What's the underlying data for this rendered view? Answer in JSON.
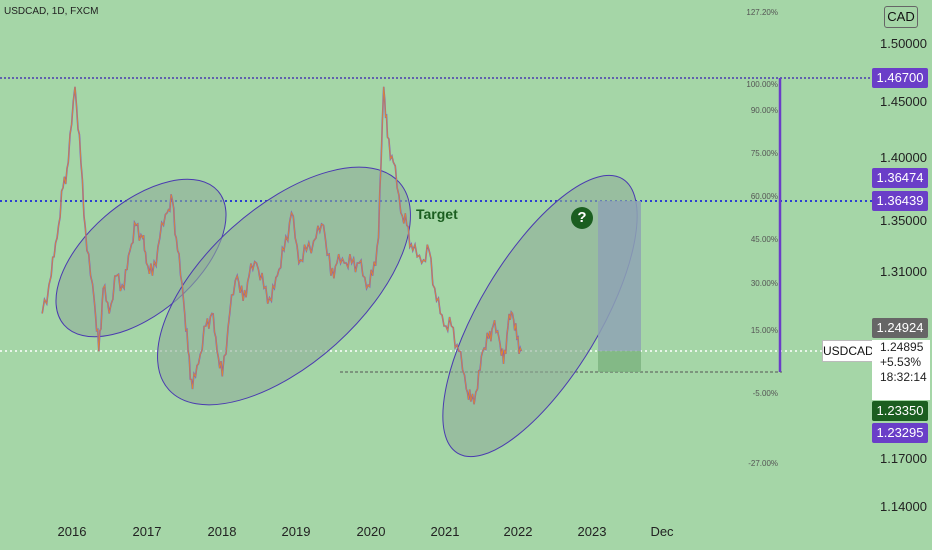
{
  "header": {
    "symbol_line": "USDCAD, 1D, FXCM"
  },
  "currency": "CAD",
  "chart_data": {
    "type": "line",
    "title": "USDCAD, 1D, FXCM",
    "x_ticks": [
      "2016",
      "2017",
      "2018",
      "2019",
      "2020",
      "2021",
      "2022",
      "2023",
      "Dec"
    ],
    "y_ticks": [
      "1.50000",
      "1.45000",
      "1.40000",
      "1.35000",
      "1.31000",
      "1.17000",
      "1.14000"
    ],
    "price_tags": [
      {
        "label": "1.46700",
        "color": "#6a3ec8"
      },
      {
        "label": "1.36474",
        "color": "#6a3ec8"
      },
      {
        "label": "1.36439",
        "color": "#6a3ec8"
      },
      {
        "label": "1.24924",
        "color": "#666666"
      },
      {
        "label": "1.23350",
        "color": "#1b5e20"
      },
      {
        "label": "1.23295",
        "color": "#6a3ec8"
      }
    ],
    "symbol_label": "USDCAD",
    "info_box": {
      "price": "1.24895",
      "change": "+5.53%",
      "countdown": "18:32:14"
    },
    "fib_levels": [
      "127.20%",
      "100.00%",
      "90.00%",
      "75.00%",
      "60.00%",
      "45.00%",
      "30.00%",
      "15.00%",
      "-5.00%",
      "-27.00%"
    ],
    "annotations": [
      "Target",
      "?"
    ],
    "series": [
      {
        "name": "USDCAD",
        "points": [
          [
            2015.6,
            1.28
          ],
          [
            2015.72,
            1.31
          ],
          [
            2015.8,
            1.34
          ],
          [
            2015.88,
            1.38
          ],
          [
            2015.95,
            1.4
          ],
          [
            2016.04,
            1.46
          ],
          [
            2016.12,
            1.4
          ],
          [
            2016.2,
            1.33
          ],
          [
            2016.3,
            1.29
          ],
          [
            2016.36,
            1.25
          ],
          [
            2016.42,
            1.3
          ],
          [
            2016.5,
            1.28
          ],
          [
            2016.6,
            1.31
          ],
          [
            2016.7,
            1.3
          ],
          [
            2016.78,
            1.33
          ],
          [
            2016.86,
            1.35
          ],
          [
            2016.95,
            1.34
          ],
          [
            2017.0,
            1.32
          ],
          [
            2017.08,
            1.31
          ],
          [
            2017.18,
            1.34
          ],
          [
            2017.28,
            1.36
          ],
          [
            2017.35,
            1.37
          ],
          [
            2017.42,
            1.33
          ],
          [
            2017.5,
            1.29
          ],
          [
            2017.56,
            1.25
          ],
          [
            2017.62,
            1.22
          ],
          [
            2017.7,
            1.24
          ],
          [
            2017.8,
            1.27
          ],
          [
            2017.88,
            1.28
          ],
          [
            2017.95,
            1.25
          ],
          [
            2018.02,
            1.23
          ],
          [
            2018.12,
            1.28
          ],
          [
            2018.22,
            1.31
          ],
          [
            2018.3,
            1.29
          ],
          [
            2018.38,
            1.31
          ],
          [
            2018.48,
            1.32
          ],
          [
            2018.58,
            1.3
          ],
          [
            2018.68,
            1.29
          ],
          [
            2018.76,
            1.31
          ],
          [
            2018.85,
            1.33
          ],
          [
            2018.95,
            1.36
          ],
          [
            2019.05,
            1.32
          ],
          [
            2019.15,
            1.33
          ],
          [
            2019.28,
            1.34
          ],
          [
            2019.38,
            1.35
          ],
          [
            2019.48,
            1.31
          ],
          [
            2019.56,
            1.32
          ],
          [
            2019.66,
            1.32
          ],
          [
            2019.76,
            1.32
          ],
          [
            2019.86,
            1.32
          ],
          [
            2019.96,
            1.3
          ],
          [
            2020.04,
            1.31
          ],
          [
            2020.12,
            1.34
          ],
          [
            2020.19,
            1.46
          ],
          [
            2020.24,
            1.42
          ],
          [
            2020.32,
            1.4
          ],
          [
            2020.42,
            1.36
          ],
          [
            2020.5,
            1.35
          ],
          [
            2020.58,
            1.33
          ],
          [
            2020.7,
            1.32
          ],
          [
            2020.8,
            1.33
          ],
          [
            2020.9,
            1.29
          ],
          [
            2021.0,
            1.27
          ],
          [
            2021.1,
            1.27
          ],
          [
            2021.2,
            1.25
          ],
          [
            2021.3,
            1.22
          ],
          [
            2021.36,
            1.21
          ],
          [
            2021.45,
            1.22
          ],
          [
            2021.52,
            1.25
          ],
          [
            2021.6,
            1.26
          ],
          [
            2021.66,
            1.27
          ],
          [
            2021.74,
            1.26
          ],
          [
            2021.8,
            1.24
          ],
          [
            2021.86,
            1.27
          ],
          [
            2021.92,
            1.28
          ],
          [
            2021.98,
            1.26
          ],
          [
            2022.04,
            1.25
          ]
        ]
      }
    ]
  }
}
